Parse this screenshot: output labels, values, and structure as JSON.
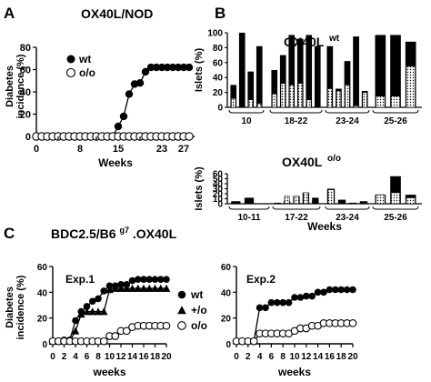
{
  "chart_data": [
    {
      "panel": "A",
      "type": "line",
      "title": "OX40L/NOD",
      "xlabel": "Weeks",
      "ylabel": [
        "Diabetes",
        "incidence (%)"
      ],
      "xlim": [
        0,
        29
      ],
      "ylim": [
        0,
        80
      ],
      "xticks": [
        0,
        8,
        15,
        23,
        27
      ],
      "xtick_labels": [
        "0",
        "8",
        "15",
        "23",
        "27"
      ],
      "xtick_labels_extra": [
        "4",
        "11",
        "19"
      ],
      "yticks": [
        0,
        20,
        40,
        60,
        80
      ],
      "legend": [
        "wt",
        "o/o"
      ],
      "legend_position": "top-left",
      "series": [
        {
          "name": "wt",
          "marker": "filled-circle",
          "x": [
            0,
            1,
            2,
            3,
            4,
            5,
            6,
            7,
            8,
            9,
            10,
            11,
            12,
            13,
            14,
            15,
            16,
            17,
            18,
            19,
            20,
            21,
            22,
            23,
            24,
            25,
            26,
            27,
            28
          ],
          "y": [
            0,
            0,
            0,
            0,
            0,
            0,
            0,
            0,
            0,
            0,
            0,
            0,
            0,
            0,
            0,
            9,
            18,
            38,
            47,
            48,
            58,
            62,
            62,
            62,
            62,
            62,
            62,
            62,
            62
          ]
        },
        {
          "name": "o/o",
          "marker": "open-circle",
          "x": [
            0,
            1,
            2,
            3,
            4,
            5,
            6,
            7,
            8,
            9,
            10,
            11,
            12,
            13,
            14,
            15,
            16,
            17,
            18,
            19,
            20,
            21,
            22,
            23,
            24,
            25,
            26,
            27,
            28
          ],
          "y": [
            0,
            0,
            0,
            0,
            0,
            0,
            0,
            0,
            0,
            0,
            0,
            0,
            0,
            0,
            0,
            0,
            0,
            0,
            0,
            0,
            0,
            0,
            0,
            0,
            0,
            0,
            0,
            0,
            0
          ]
        }
      ]
    },
    {
      "panel": "B-top",
      "type": "bar",
      "title": "OX40L",
      "title_sup": "wt",
      "ylabel": "Islets (%)",
      "ylim": [
        0,
        100
      ],
      "yticks": [
        0,
        20,
        40,
        60,
        80,
        100
      ],
      "groups": [
        "10",
        "18-22",
        "23-24",
        "25-26"
      ],
      "group_bar_counts": [
        4,
        6,
        5,
        3
      ],
      "bars": [
        [
          30,
          100,
          48,
          82,
          18,
          25
        ],
        [
          50,
          70,
          97,
          92,
          97,
          82
        ],
        [
          82,
          25,
          62,
          95,
          22,
          82
        ],
        [
          97,
          97,
          88,
          0,
          0,
          0
        ]
      ],
      "dotted": [
        [
          12,
          0,
          10,
          5,
          0,
          0
        ],
        [
          18,
          32,
          30,
          32,
          10,
          0
        ],
        [
          25,
          22,
          30,
          2,
          20,
          0
        ],
        [
          15,
          15,
          55,
          0,
          0,
          0
        ]
      ]
    },
    {
      "panel": "B-bottom",
      "type": "bar",
      "title": "OX40L",
      "title_sup": "o/o",
      "ylabel": "Islets (%)",
      "ylim": [
        0,
        60
      ],
      "yticks": [
        0,
        10,
        20,
        30,
        40,
        50,
        60
      ],
      "groups": [
        "10-11",
        "17-22",
        "23-24",
        "25-26"
      ],
      "group_bar_counts": [
        3,
        5,
        4,
        3
      ],
      "bars": [
        [
          5,
          12,
          0,
          2,
          0,
          0
        ],
        [
          2,
          5,
          15,
          22,
          12,
          0
        ],
        [
          30,
          8,
          2,
          5,
          0,
          0
        ],
        [
          18,
          55,
          18,
          0,
          0,
          0
        ]
      ],
      "dotted": [
        [
          0,
          0,
          0,
          0,
          0,
          0
        ],
        [
          0,
          15,
          15,
          22,
          0,
          0
        ],
        [
          28,
          0,
          0,
          0,
          0,
          0
        ],
        [
          18,
          22,
          12,
          0,
          0,
          0
        ]
      ]
    },
    {
      "panel": "C-Exp.1",
      "type": "line",
      "title": "BDC2.5/B6",
      "title_sup": "g7",
      "title_suffix": ".OX40L",
      "label": "Exp.1",
      "xlabel": "weeks",
      "ylabel": [
        "Diabetes",
        "incidence (%)"
      ],
      "xlim": [
        0,
        20
      ],
      "ylim": [
        0,
        60
      ],
      "xticks": [
        0,
        2,
        4,
        6,
        8,
        10,
        12,
        14,
        16,
        18,
        20
      ],
      "yticks": [
        0,
        20,
        40,
        60
      ],
      "series": [
        {
          "name": "wt",
          "marker": "filled-circle",
          "x": [
            0,
            1,
            2,
            3,
            4,
            5,
            6,
            7,
            8,
            9,
            10,
            11,
            12,
            13,
            14,
            15,
            16,
            17,
            18,
            19,
            20
          ],
          "y": [
            2,
            2,
            3,
            3,
            18,
            25,
            29,
            33,
            35,
            41,
            45,
            45,
            46,
            46,
            49,
            50,
            50,
            50,
            50,
            50,
            50
          ]
        },
        {
          "name": "+/o",
          "marker": "filled-triangle",
          "x": [
            0,
            1,
            2,
            3,
            4,
            5,
            6,
            7,
            8,
            9,
            10,
            11,
            12,
            13,
            14,
            15,
            16,
            17,
            18,
            19,
            20
          ],
          "y": [
            2,
            2,
            2,
            2,
            10,
            23,
            25,
            25,
            25,
            25,
            42,
            43,
            43,
            43,
            43,
            43,
            43,
            43,
            43,
            43,
            43
          ]
        },
        {
          "name": "o/o",
          "marker": "open-circle",
          "x": [
            0,
            1,
            2,
            3,
            4,
            5,
            6,
            7,
            8,
            9,
            10,
            11,
            12,
            13,
            14,
            15,
            16,
            17,
            18,
            19,
            20
          ],
          "y": [
            2,
            2,
            2,
            2,
            2,
            2,
            2,
            2,
            2,
            2,
            6,
            6,
            10,
            10,
            13,
            14,
            14,
            14,
            14,
            14,
            14
          ]
        }
      ]
    },
    {
      "panel": "C-Exp.2",
      "type": "line",
      "label": "Exp.2",
      "xlabel": "weeks",
      "xlim": [
        0,
        20
      ],
      "ylim": [
        0,
        60
      ],
      "xticks": [
        0,
        2,
        4,
        6,
        8,
        10,
        12,
        14,
        16,
        18,
        20
      ],
      "yticks": [
        0,
        20,
        40,
        60
      ],
      "series": [
        {
          "name": "wt",
          "marker": "filled-circle",
          "x": [
            0,
            1,
            2,
            3,
            4,
            5,
            6,
            7,
            8,
            9,
            10,
            11,
            12,
            13,
            14,
            15,
            16,
            17,
            18,
            19,
            20
          ],
          "y": [
            2,
            2,
            2,
            2,
            28,
            28,
            32,
            32,
            32,
            32,
            36,
            36,
            37,
            37,
            40,
            40,
            42,
            42,
            42,
            42,
            42
          ]
        },
        {
          "name": "o/o",
          "marker": "open-circle",
          "x": [
            0,
            1,
            2,
            3,
            4,
            5,
            6,
            7,
            8,
            9,
            10,
            11,
            12,
            13,
            14,
            15,
            16,
            17,
            18,
            19,
            20
          ],
          "y": [
            2,
            2,
            2,
            2,
            8,
            8,
            8,
            8,
            8,
            8,
            10,
            12,
            12,
            14,
            14,
            16,
            16,
            16,
            16,
            16,
            16
          ]
        }
      ]
    }
  ],
  "panel_labels": {
    "a": "A",
    "b": "B",
    "c": "C"
  },
  "legend_c": [
    "wt",
    "+/o",
    "o/o"
  ]
}
